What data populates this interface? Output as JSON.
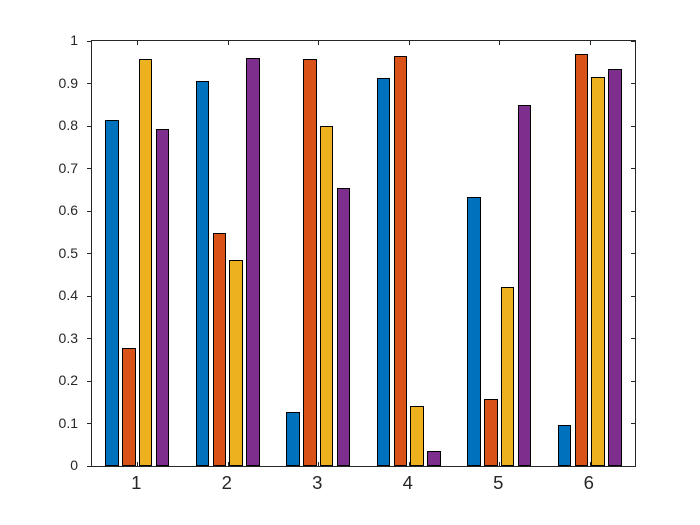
{
  "figure": {
    "background": "#ffffff"
  },
  "chart_data": {
    "type": "bar",
    "title": "",
    "xlabel": "",
    "ylabel": "",
    "categories": [
      "1",
      "2",
      "3",
      "4",
      "5",
      "6"
    ],
    "series": [
      {
        "color": "#0072BD",
        "values": [
          0.815,
          0.905,
          0.128,
          0.912,
          0.632,
          0.097
        ]
      },
      {
        "color": "#D95319",
        "values": [
          0.278,
          0.548,
          0.957,
          0.964,
          0.157,
          0.97
        ]
      },
      {
        "color": "#EDB120",
        "values": [
          0.958,
          0.485,
          0.8,
          0.142,
          0.421,
          0.915
        ]
      },
      {
        "color": "#7E2F8E",
        "values": [
          0.793,
          0.96,
          0.655,
          0.036,
          0.85,
          0.934
        ]
      }
    ],
    "bar_edge_color": "#000000",
    "ylim": [
      0,
      1
    ],
    "yticks": [
      0,
      0.1,
      0.2,
      0.3,
      0.4,
      0.5,
      0.6,
      0.7,
      0.8,
      0.9,
      1
    ],
    "ytick_labels": [
      "0",
      "0.1",
      "0.2",
      "0.3",
      "0.4",
      "0.5",
      "0.6",
      "0.7",
      "0.8",
      "0.9",
      "1"
    ],
    "grid": false,
    "legend": "none",
    "axis_color": "#262626",
    "tick_label_color": "#262626"
  }
}
